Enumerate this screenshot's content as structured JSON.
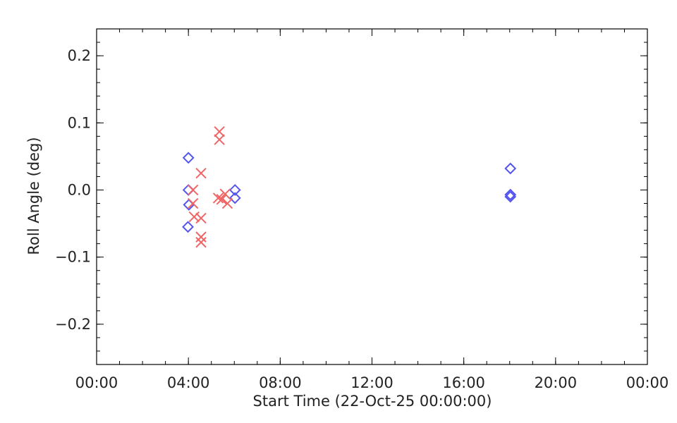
{
  "chart_data": {
    "type": "scatter",
    "xlabel": "Start Time (22-Oct-25 00:00:00)",
    "ylabel": "Roll Angle (deg)",
    "x_unit": "hours",
    "xlim": [
      0,
      24
    ],
    "ylim": [
      -0.26,
      0.24
    ],
    "x_ticks": [
      {
        "value": 0,
        "label": "00:00"
      },
      {
        "value": 4,
        "label": "04:00"
      },
      {
        "value": 8,
        "label": "08:00"
      },
      {
        "value": 12,
        "label": "12:00"
      },
      {
        "value": 16,
        "label": "16:00"
      },
      {
        "value": 20,
        "label": "20:00"
      },
      {
        "value": 24,
        "label": "00:00"
      }
    ],
    "x_minor_step": 1,
    "y_ticks": [
      {
        "value": 0.2,
        "label": "0.2"
      },
      {
        "value": 0.1,
        "label": "0.1"
      },
      {
        "value": 0.0,
        "label": "0.0"
      },
      {
        "value": -0.1,
        "label": "−0.1"
      },
      {
        "value": -0.2,
        "label": "−0.2"
      }
    ],
    "y_minor_step": 0.02,
    "grid": false,
    "series": [
      {
        "marker": "diamond",
        "color": "#5555ee",
        "points": [
          {
            "x": 4.0,
            "y": 0.048
          },
          {
            "x": 4.0,
            "y": 0.0
          },
          {
            "x": 4.02,
            "y": -0.022
          },
          {
            "x": 3.98,
            "y": -0.055
          },
          {
            "x": 6.03,
            "y": 0.0
          },
          {
            "x": 6.03,
            "y": -0.012
          },
          {
            "x": 18.03,
            "y": 0.032
          },
          {
            "x": 18.03,
            "y": -0.007
          },
          {
            "x": 18.03,
            "y": -0.01
          }
        ]
      },
      {
        "marker": "cross",
        "color": "#ee6666",
        "points": [
          {
            "x": 4.2,
            "y": 0.0
          },
          {
            "x": 4.2,
            "y": -0.02
          },
          {
            "x": 4.25,
            "y": -0.04
          },
          {
            "x": 4.55,
            "y": 0.025
          },
          {
            "x": 4.55,
            "y": -0.042
          },
          {
            "x": 4.55,
            "y": -0.07
          },
          {
            "x": 4.55,
            "y": -0.078
          },
          {
            "x": 5.35,
            "y": 0.087
          },
          {
            "x": 5.35,
            "y": 0.075
          },
          {
            "x": 5.3,
            "y": -0.012
          },
          {
            "x": 5.45,
            "y": -0.014
          },
          {
            "x": 5.6,
            "y": -0.006
          },
          {
            "x": 5.7,
            "y": -0.02
          }
        ]
      }
    ]
  }
}
